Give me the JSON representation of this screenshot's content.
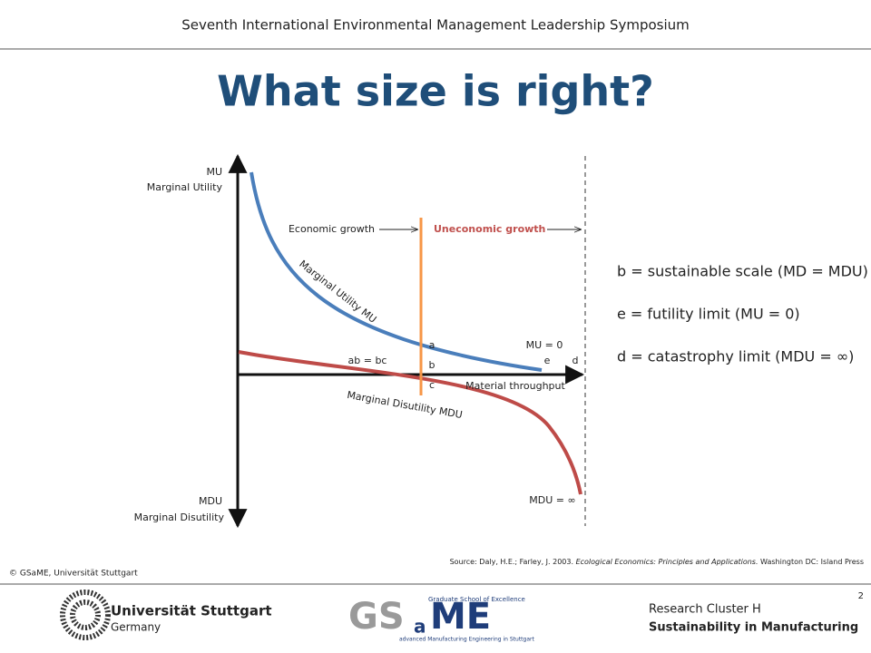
{
  "header": {
    "title": "Seventh International Environmental Management Leadership Symposium"
  },
  "slide": {
    "title": "What size is right?"
  },
  "diagram": {
    "y_axis_top": [
      "MU",
      "Marginal Utility"
    ],
    "y_axis_bottom": [
      "MDU",
      "Marginal Disutility"
    ],
    "growth": [
      "Economic growth",
      "Uneconomic growth"
    ],
    "curve_mu": "Marginal Utility MU",
    "curve_mdu": "Marginal Disutility MDU",
    "points": [
      "a",
      "b",
      "c",
      "e",
      "d"
    ],
    "ab_bc": "ab = bc",
    "mu_zero": "MU = 0",
    "x_axis": "Material throughput",
    "mdu_inf": "MDU = ∞"
  },
  "notes": [
    "b = sustainable scale (MD = MDU)",
    "e = futility limit (MU = 0)",
    "d = catastrophy limit (MDU = ∞)"
  ],
  "footer": {
    "copyright": "© GSaME, Universität Stuttgart",
    "source": [
      "Source: Daly, H.E.; Farley, J. 2003. ",
      "Ecological Economics: Principles and Applications.",
      " Washington DC: Island Press"
    ],
    "page": "2",
    "cluster": "Research Cluster H",
    "topic": "Sustainability in Manufacturing",
    "university": [
      "Universität Stuttgart",
      "Germany"
    ],
    "gsame": [
      "GS",
      "a",
      "ME",
      "Graduate School of Excellence",
      "advanced Manufacturing Engineering in Stuttgart"
    ]
  }
}
